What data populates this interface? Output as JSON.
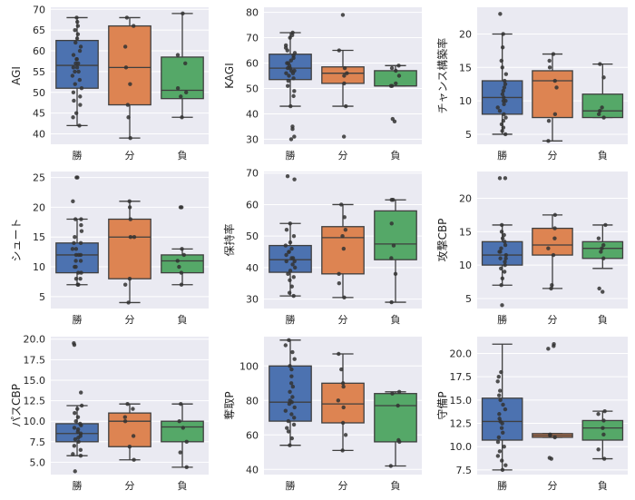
{
  "chart_data": [
    {
      "type": "box",
      "ylabel": "AGI",
      "categories": [
        "勝",
        "分",
        "負"
      ],
      "ylim": [
        37.5,
        70.5
      ],
      "yticks": [
        40,
        45,
        50,
        55,
        60,
        65,
        70
      ],
      "boxes": [
        {
          "q1": 51,
          "median": 56.5,
          "q3": 62.5,
          "low": 42,
          "high": 68
        },
        {
          "q1": 47,
          "median": 56,
          "q3": 66,
          "low": 39,
          "high": 68
        },
        {
          "q1": 48.5,
          "median": 50.5,
          "q3": 58.5,
          "low": 44,
          "high": 69
        }
      ],
      "points": [
        [
          42,
          44,
          45,
          47,
          48,
          49,
          50,
          51,
          52,
          53,
          54,
          55,
          55,
          56,
          56,
          57,
          57,
          58,
          58,
          59,
          60,
          61,
          62,
          63,
          64,
          65,
          66,
          67,
          68
        ],
        [
          39,
          44,
          47,
          52,
          56,
          61,
          66,
          68
        ],
        [
          44,
          49,
          50,
          51,
          57,
          59,
          69
        ]
      ],
      "colors": [
        "#4c72b0",
        "#dd8452",
        "#55a868"
      ]
    },
    {
      "type": "box",
      "ylabel": "KAGI",
      "categories": [
        "勝",
        "分",
        "負"
      ],
      "ylim": [
        28,
        82
      ],
      "yticks": [
        30,
        40,
        50,
        60,
        70,
        80
      ],
      "boxes": [
        {
          "q1": 53.5,
          "median": 58,
          "q3": 63.5,
          "low": 43,
          "high": 72
        },
        {
          "q1": 52,
          "median": 56,
          "q3": 58.5,
          "low": 43,
          "high": 65
        },
        {
          "q1": 51,
          "median": 51,
          "q3": 57,
          "low": 51,
          "high": 59
        }
      ],
      "points": [
        [
          30,
          31,
          34,
          35,
          43,
          47,
          49,
          51,
          53,
          54,
          55,
          56,
          56,
          57,
          57,
          58,
          58,
          59,
          60,
          60,
          61,
          62,
          63,
          64,
          65,
          66,
          67,
          70,
          71,
          72
        ],
        [
          31,
          43,
          52,
          55,
          56,
          58,
          65,
          79
        ],
        [
          37,
          38,
          51,
          51,
          52,
          55,
          57,
          58,
          59
        ]
      ],
      "colors": [
        "#4c72b0",
        "#dd8452",
        "#55a868"
      ]
    },
    {
      "type": "box",
      "ylabel": "チャンス構築率",
      "categories": [
        "勝",
        "分",
        "負"
      ],
      "ylim": [
        3.5,
        24
      ],
      "yticks": [
        5,
        10,
        15,
        20
      ],
      "boxes": [
        {
          "q1": 8,
          "median": 10.5,
          "q3": 13,
          "low": 5,
          "high": 20
        },
        {
          "q1": 7.5,
          "median": 13,
          "q3": 14.5,
          "low": 4,
          "high": 17
        },
        {
          "q1": 7.5,
          "median": 8.5,
          "q3": 11,
          "low": 7.5,
          "high": 15.5
        }
      ],
      "points": [
        [
          5,
          5.5,
          6,
          6.5,
          7,
          7.5,
          8,
          8.5,
          9,
          9.5,
          10,
          10,
          10.5,
          11,
          11.5,
          12,
          12.5,
          13,
          14,
          15,
          16,
          18,
          20,
          23
        ],
        [
          4,
          7,
          8,
          12,
          13,
          15,
          16,
          17
        ],
        [
          7.5,
          8,
          8.5,
          9,
          13.5,
          15.5
        ]
      ],
      "colors": [
        "#4c72b0",
        "#dd8452",
        "#55a868"
      ]
    },
    {
      "type": "box",
      "ylabel": "シュート",
      "categories": [
        "勝",
        "分",
        "負"
      ],
      "ylim": [
        3,
        26
      ],
      "yticks": [
        5,
        10,
        15,
        20,
        25
      ],
      "boxes": [
        {
          "q1": 9,
          "median": 12,
          "q3": 14,
          "low": 7,
          "high": 18
        },
        {
          "q1": 8,
          "median": 15,
          "q3": 18,
          "low": 4,
          "high": 21
        },
        {
          "q1": 9,
          "median": 11,
          "q3": 12,
          "low": 7,
          "high": 13
        }
      ],
      "points": [
        [
          7,
          7,
          8,
          8,
          9,
          9,
          10,
          10,
          11,
          11,
          12,
          12,
          12,
          13,
          13,
          14,
          14,
          15,
          16,
          17,
          18,
          18,
          21,
          25,
          25
        ],
        [
          4,
          7,
          8,
          15,
          15,
          18,
          20,
          21
        ],
        [
          7,
          9,
          10,
          11,
          12,
          13,
          20,
          20
        ]
      ],
      "colors": [
        "#4c72b0",
        "#dd8452",
        "#55a868"
      ]
    },
    {
      "type": "box",
      "ylabel": "保持率",
      "categories": [
        "勝",
        "分",
        "負"
      ],
      "ylim": [
        27,
        70.5
      ],
      "yticks": [
        30,
        40,
        50,
        60,
        70
      ],
      "boxes": [
        {
          "q1": 38.5,
          "median": 42.5,
          "q3": 47,
          "low": 31,
          "high": 54
        },
        {
          "q1": 38,
          "median": 49.5,
          "q3": 53,
          "low": 30.5,
          "high": 60
        },
        {
          "q1": 42.5,
          "median": 47.5,
          "q3": 58,
          "low": 29,
          "high": 61.5
        }
      ],
      "points": [
        [
          31,
          32,
          34,
          36,
          37,
          38,
          39,
          40,
          41,
          42,
          42,
          43,
          43,
          44,
          45,
          45,
          46,
          47,
          48,
          50,
          52,
          54,
          68,
          69
        ],
        [
          30.5,
          35,
          38,
          46,
          50,
          52,
          56,
          60
        ],
        [
          29,
          38,
          43,
          47,
          54,
          61.5,
          61.5
        ]
      ],
      "colors": [
        "#4c72b0",
        "#dd8452",
        "#55a868"
      ]
    },
    {
      "type": "box",
      "ylabel": "攻撃CBP",
      "categories": [
        "勝",
        "分",
        "負"
      ],
      "ylim": [
        3.5,
        24
      ],
      "yticks": [
        5,
        10,
        15,
        20
      ],
      "boxes": [
        {
          "q1": 10,
          "median": 11.5,
          "q3": 13.5,
          "low": 7,
          "high": 16
        },
        {
          "q1": 11.5,
          "median": 13,
          "q3": 15.5,
          "low": 6.5,
          "high": 17.5
        },
        {
          "q1": 11,
          "median": 12.5,
          "q3": 13.5,
          "low": 9.5,
          "high": 16
        }
      ],
      "points": [
        [
          4,
          7,
          8,
          9,
          9.5,
          10,
          10.5,
          11,
          11,
          11.5,
          12,
          12,
          12.5,
          13,
          13.5,
          14,
          14.5,
          15,
          16,
          23,
          23
        ],
        [
          6.5,
          7,
          11.5,
          12.5,
          14,
          15.5,
          17.5
        ],
        [
          6,
          6.5,
          11,
          12,
          12.5,
          13,
          14,
          16
        ]
      ],
      "colors": [
        "#4c72b0",
        "#dd8452",
        "#55a868"
      ]
    },
    {
      "type": "box",
      "ylabel": "パスCBP",
      "categories": [
        "勝",
        "分",
        "負"
      ],
      "ylim": [
        3.5,
        20.3
      ],
      "yticks": [
        5.0,
        7.5,
        10.0,
        12.5,
        15.0,
        17.5,
        20.0
      ],
      "tickDecimals": 1,
      "boxes": [
        {
          "q1": 7.5,
          "median": 8.5,
          "q3": 9.7,
          "low": 5.8,
          "high": 11.9
        },
        {
          "q1": 6.9,
          "median": 10,
          "q3": 11,
          "low": 5.3,
          "high": 12.1
        },
        {
          "q1": 7.5,
          "median": 9.3,
          "q3": 10,
          "low": 4.4,
          "high": 12.1
        }
      ],
      "points": [
        [
          3.9,
          5.8,
          6,
          6.5,
          7,
          7.5,
          7.8,
          8,
          8.2,
          8.5,
          8.7,
          9,
          9.2,
          9.5,
          9.7,
          10,
          10.5,
          11,
          11.5,
          11.9,
          13.5,
          19.3,
          19.5
        ],
        [
          5.3,
          6.9,
          8.2,
          10,
          10.5,
          11.5,
          12.1
        ],
        [
          4.4,
          6.2,
          7.5,
          9.2,
          10,
          12.1
        ]
      ],
      "colors": [
        "#4c72b0",
        "#dd8452",
        "#55a868"
      ]
    },
    {
      "type": "box",
      "ylabel": "奪取P",
      "categories": [
        "勝",
        "分",
        "負"
      ],
      "ylim": [
        37,
        117
      ],
      "yticks": [
        40,
        60,
        80,
        100
      ],
      "boxes": [
        {
          "q1": 68,
          "median": 79,
          "q3": 100,
          "low": 54,
          "high": 115
        },
        {
          "q1": 67,
          "median": 78,
          "q3": 90,
          "low": 51,
          "high": 107
        },
        {
          "q1": 56,
          "median": 77,
          "q3": 84,
          "low": 42,
          "high": 85
        }
      ],
      "points": [
        [
          54,
          58,
          62,
          64,
          66,
          68,
          70,
          72,
          74,
          76,
          78,
          79,
          80,
          82,
          85,
          88,
          90,
          94,
          98,
          100,
          104,
          108,
          112,
          115
        ],
        [
          51,
          60,
          67,
          76,
          80,
          88,
          90,
          98,
          107
        ],
        [
          42,
          56,
          57,
          77,
          84,
          85
        ]
      ],
      "colors": [
        "#4c72b0",
        "#dd8452",
        "#55a868"
      ]
    },
    {
      "type": "box",
      "ylabel": "守備P",
      "categories": [
        "勝",
        "分",
        "負"
      ],
      "ylim": [
        7,
        21.8
      ],
      "yticks": [
        7.5,
        10.0,
        12.5,
        15.0,
        17.5,
        20.0
      ],
      "tickDecimals": 1,
      "boxes": [
        {
          "q1": 10.7,
          "median": 12.7,
          "q3": 15.2,
          "low": 7.5,
          "high": 21
        },
        {
          "q1": 11,
          "median": 11.2,
          "q3": 11.4,
          "low": 11,
          "high": 11.4
        },
        {
          "q1": 10.7,
          "median": 12,
          "q3": 12.8,
          "low": 8.7,
          "high": 13.8
        }
      ],
      "points": [
        [
          7.5,
          8,
          8.5,
          9,
          9.5,
          10,
          10.5,
          11,
          11.5,
          12,
          12.5,
          12.7,
          13,
          13.5,
          14,
          14.5,
          15,
          15.5,
          16,
          17,
          17.5,
          18
        ],
        [
          8.7,
          8.8,
          11,
          11.2,
          11.3,
          20.5,
          20.8,
          21
        ],
        [
          8.7,
          9.7,
          11.3,
          12,
          12.8,
          13.5,
          13.8
        ]
      ],
      "colors": [
        "#4c72b0",
        "#dd8452",
        "#55a868"
      ]
    }
  ]
}
